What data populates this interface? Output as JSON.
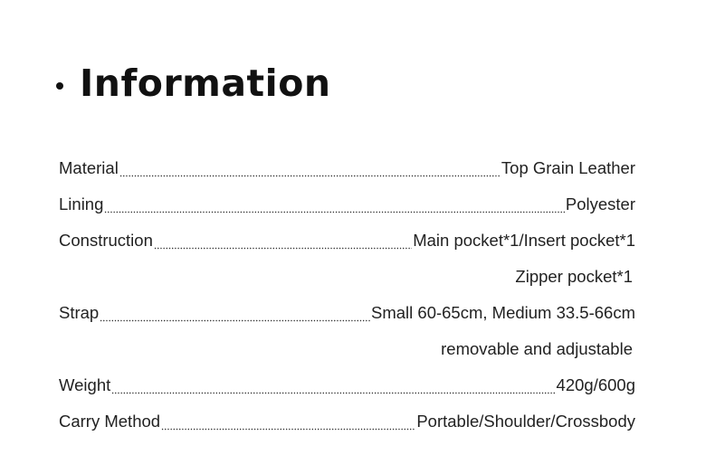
{
  "title": "Information",
  "specs": [
    {
      "label": "Material",
      "value": "Top Grain Leather"
    },
    {
      "label": "Lining",
      "value": "Polyester"
    },
    {
      "label": "Construction",
      "value": "Main pocket*1/Insert pocket*1",
      "continuation": "Zipper pocket*1"
    },
    {
      "label": "Strap",
      "value": "Small 60-65cm, Medium 33.5-66cm",
      "continuation": "removable and adjustable"
    },
    {
      "label": "Weight",
      "value": "420g/600g"
    },
    {
      "label": "Carry Method",
      "value": "Portable/Shoulder/Crossbody"
    }
  ]
}
